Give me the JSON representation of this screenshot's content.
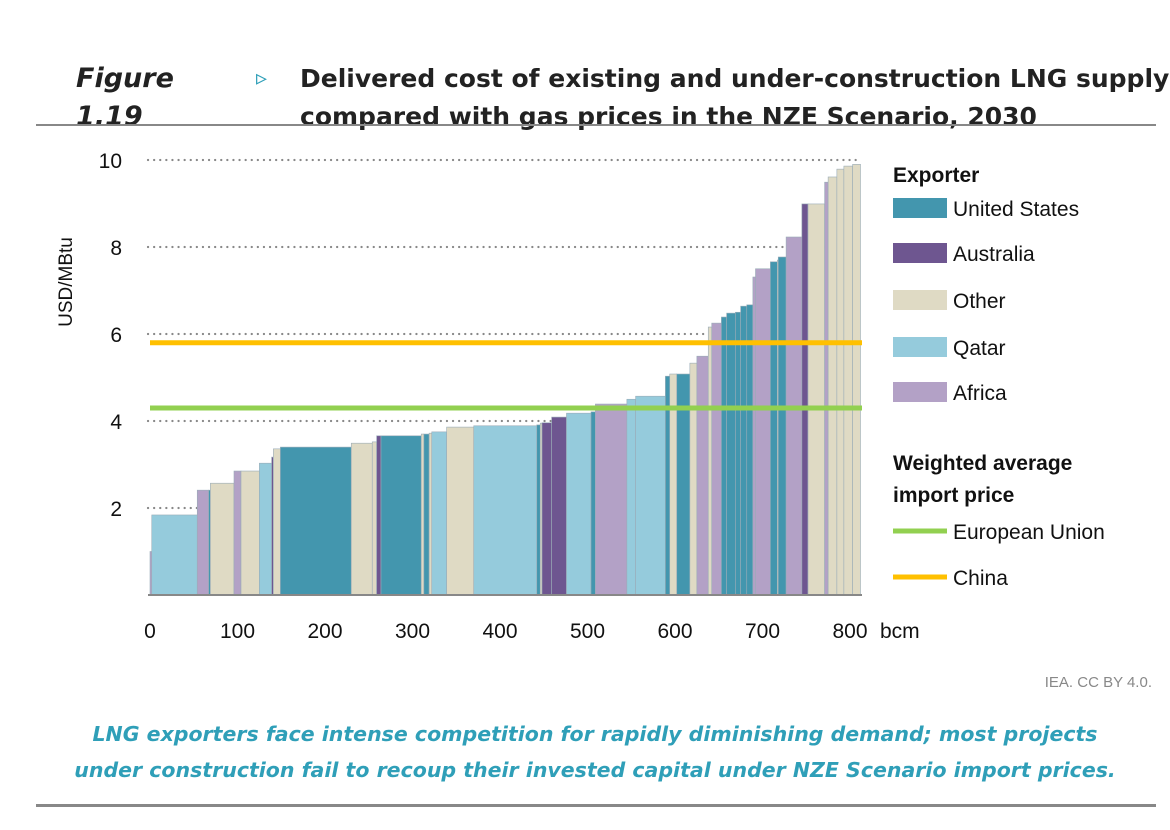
{
  "figure": {
    "label": "Figure 1.19",
    "marker": "▹",
    "title_line1": "Delivered cost of existing and under-construction LNG supply",
    "title_line2": "compared with gas prices in the NZE Scenario, 2030"
  },
  "source": "IEA. CC BY 4.0.",
  "caption_line1": "LNG exporters face intense competition for rapidly diminishing demand; most projects",
  "caption_line2": "under construction fail to recoup their invested capital under NZE Scenario import prices.",
  "chart_data": {
    "type": "bar",
    "subtype": "supply-cost-curve",
    "ylabel": "USD/MBtu",
    "xlabel": "bcm",
    "xlim": [
      0,
      800
    ],
    "ylim": [
      0,
      10
    ],
    "xticks": [
      0,
      100,
      200,
      300,
      400,
      500,
      600,
      700,
      800
    ],
    "yticks": [
      2,
      4,
      6,
      8,
      10
    ],
    "grid": "dotted horizontal",
    "legend_position": "right",
    "legend_title_exporter": "Exporter",
    "legend_title_prices_line1": "Weighted average",
    "legend_title_prices_line2": "import price",
    "exporters": [
      {
        "name": "United States",
        "color": "#4396ae"
      },
      {
        "name": "Australia",
        "color": "#6e5690"
      },
      {
        "name": "Other",
        "color": "#dfdac4"
      },
      {
        "name": "Qatar",
        "color": "#95cbdc"
      },
      {
        "name": "Africa",
        "color": "#b3a1c6"
      }
    ],
    "price_lines": [
      {
        "name": "European Union",
        "value": 4.3,
        "color": "#92d050"
      },
      {
        "name": "China",
        "value": 5.8,
        "color": "#ffc000"
      }
    ],
    "segments_columns": [
      "start_bcm",
      "end_bcm",
      "cost_usd_mbtu",
      "exporter"
    ],
    "segments": [
      [
        0,
        2,
        1.0,
        "Africa"
      ],
      [
        2,
        54,
        1.84,
        "Qatar"
      ],
      [
        54,
        67,
        2.41,
        "Africa"
      ],
      [
        67,
        69,
        2.41,
        "United States"
      ],
      [
        69,
        96,
        2.57,
        "Other"
      ],
      [
        96,
        104,
        2.85,
        "Africa"
      ],
      [
        104,
        125,
        2.85,
        "Other"
      ],
      [
        125,
        139,
        3.03,
        "Qatar"
      ],
      [
        139,
        141,
        3.17,
        "Australia"
      ],
      [
        141,
        149,
        3.36,
        "Other"
      ],
      [
        149,
        230,
        3.4,
        "United States"
      ],
      [
        230,
        254,
        3.49,
        "Other"
      ],
      [
        254,
        259,
        3.52,
        "Other"
      ],
      [
        259,
        264,
        3.66,
        "Australia"
      ],
      [
        264,
        310,
        3.66,
        "United States"
      ],
      [
        310,
        313,
        3.7,
        "Other"
      ],
      [
        313,
        319,
        3.7,
        "United States"
      ],
      [
        319,
        322,
        3.72,
        "Other"
      ],
      [
        322,
        339,
        3.75,
        "Qatar"
      ],
      [
        339,
        370,
        3.86,
        "Other"
      ],
      [
        370,
        442,
        3.89,
        "Qatar"
      ],
      [
        442,
        446,
        3.91,
        "United States"
      ],
      [
        446,
        448,
        3.95,
        "Other"
      ],
      [
        448,
        459,
        3.96,
        "Australia"
      ],
      [
        459,
        476,
        4.09,
        "Australia"
      ],
      [
        476,
        504,
        4.18,
        "Qatar"
      ],
      [
        504,
        509,
        4.21,
        "United States"
      ],
      [
        509,
        545,
        4.39,
        "Africa"
      ],
      [
        545,
        555,
        4.5,
        "Qatar"
      ],
      [
        555,
        589,
        4.57,
        "Qatar"
      ],
      [
        589,
        594,
        5.03,
        "United States"
      ],
      [
        594,
        602,
        5.08,
        "Other"
      ],
      [
        602,
        617,
        5.08,
        "United States"
      ],
      [
        617,
        625,
        5.33,
        "Other"
      ],
      [
        625,
        638,
        5.49,
        "Africa"
      ],
      [
        638,
        642,
        6.16,
        "Other"
      ],
      [
        642,
        653,
        6.25,
        "Africa"
      ],
      [
        653,
        659,
        6.39,
        "United States"
      ],
      [
        659,
        669,
        6.48,
        "United States"
      ],
      [
        669,
        675,
        6.5,
        "United States"
      ],
      [
        675,
        682,
        6.64,
        "United States"
      ],
      [
        682,
        689,
        6.67,
        "United States"
      ],
      [
        689,
        692,
        7.31,
        "Africa"
      ],
      [
        692,
        709,
        7.5,
        "Africa"
      ],
      [
        709,
        717,
        7.66,
        "United States"
      ],
      [
        717,
        718,
        7.7,
        "Other"
      ],
      [
        718,
        727,
        7.77,
        "United States"
      ],
      [
        727,
        745,
        8.23,
        "Africa"
      ],
      [
        745,
        752,
        8.99,
        "Australia"
      ],
      [
        752,
        771,
        8.99,
        "Other"
      ],
      [
        771,
        775,
        9.49,
        "Africa"
      ],
      [
        775,
        785,
        9.61,
        "Other"
      ],
      [
        785,
        793,
        9.79,
        "Other"
      ],
      [
        793,
        803,
        9.86,
        "Other"
      ],
      [
        803,
        812,
        9.9,
        "Other"
      ]
    ]
  }
}
